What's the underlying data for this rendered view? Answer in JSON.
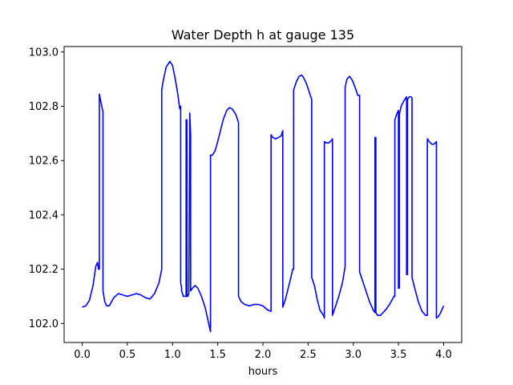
{
  "chart_data": {
    "type": "line",
    "title": "Water Depth h at gauge 135",
    "xlabel": "hours",
    "ylabel": "",
    "xlim": [
      -0.2,
      4.2
    ],
    "ylim": [
      101.93,
      103.02
    ],
    "xticks": [
      0.0,
      0.5,
      1.0,
      1.5,
      2.0,
      2.5,
      3.0,
      3.5,
      4.0
    ],
    "xtick_labels": [
      "0.0",
      "0.5",
      "1.0",
      "1.5",
      "2.0",
      "2.5",
      "3.0",
      "3.5",
      "4.0"
    ],
    "yticks": [
      102.0,
      102.2,
      102.4,
      102.6,
      102.8,
      103.0
    ],
    "ytick_labels": [
      "102.0",
      "102.2",
      "102.4",
      "102.6",
      "102.8",
      "103.0"
    ],
    "grid": false,
    "series": [
      {
        "color": "#0000ff",
        "x": [
          0.0,
          0.04,
          0.08,
          0.12,
          0.15,
          0.17,
          0.18,
          0.19,
          0.19,
          0.21,
          0.23,
          0.23,
          0.25,
          0.27,
          0.3,
          0.35,
          0.4,
          0.45,
          0.5,
          0.55,
          0.6,
          0.65,
          0.7,
          0.75,
          0.8,
          0.85,
          0.88,
          0.88,
          0.9,
          0.93,
          0.97,
          1.0,
          1.03,
          1.06,
          1.08,
          1.09,
          1.09,
          1.1,
          1.1,
          1.12,
          1.14,
          1.15,
          1.15,
          1.16,
          1.16,
          1.17,
          1.18,
          1.19,
          1.19,
          1.2,
          1.2,
          1.22,
          1.25,
          1.28,
          1.32,
          1.36,
          1.4,
          1.42,
          1.42,
          1.44,
          1.47,
          1.5,
          1.53,
          1.56,
          1.6,
          1.63,
          1.66,
          1.7,
          1.73,
          1.73,
          1.76,
          1.8,
          1.85,
          1.9,
          1.95,
          2.0,
          2.05,
          2.09,
          2.09,
          2.11,
          2.14,
          2.17,
          2.2,
          2.22,
          2.22,
          2.25,
          2.28,
          2.31,
          2.33,
          2.34,
          2.34,
          2.37,
          2.4,
          2.43,
          2.45,
          2.48,
          2.51,
          2.54,
          2.54,
          2.57,
          2.6,
          2.63,
          2.67,
          2.68,
          2.68,
          2.7,
          2.73,
          2.76,
          2.77,
          2.77,
          2.8,
          2.84,
          2.88,
          2.91,
          2.91,
          2.93,
          2.96,
          2.99,
          3.02,
          3.05,
          3.07,
          3.07,
          3.1,
          3.14,
          3.18,
          3.22,
          3.24,
          3.24,
          3.25,
          3.25,
          3.27,
          3.3,
          3.33,
          3.37,
          3.41,
          3.45,
          3.46,
          3.46,
          3.48,
          3.5,
          3.5,
          3.51,
          3.51,
          3.53,
          3.56,
          3.58,
          3.59,
          3.59,
          3.6,
          3.6,
          3.62,
          3.64,
          3.65,
          3.65,
          3.68,
          3.72,
          3.76,
          3.8,
          3.82,
          3.82,
          3.84,
          3.87,
          3.89,
          3.91,
          3.92,
          3.92,
          3.94,
          3.96,
          3.98,
          4.0
        ],
        "y": [
          102.06,
          102.065,
          102.085,
          102.14,
          102.21,
          102.225,
          102.2,
          102.2,
          102.845,
          102.81,
          102.78,
          102.12,
          102.08,
          102.065,
          102.065,
          102.095,
          102.11,
          102.105,
          102.1,
          102.105,
          102.11,
          102.105,
          102.095,
          102.09,
          102.11,
          102.15,
          102.2,
          102.86,
          102.9,
          102.945,
          102.965,
          102.95,
          102.9,
          102.84,
          102.79,
          102.8,
          102.15,
          102.13,
          102.12,
          102.1,
          102.1,
          102.1,
          102.75,
          102.75,
          102.1,
          102.1,
          102.11,
          102.7,
          102.775,
          102.7,
          102.12,
          102.13,
          102.14,
          102.13,
          102.1,
          102.06,
          102.0,
          101.97,
          102.62,
          102.62,
          102.635,
          102.67,
          102.71,
          102.75,
          102.785,
          102.795,
          102.79,
          102.77,
          102.74,
          102.1,
          102.08,
          102.07,
          102.065,
          102.07,
          102.07,
          102.065,
          102.05,
          102.045,
          102.695,
          102.685,
          102.68,
          102.685,
          102.69,
          102.71,
          102.06,
          102.09,
          102.13,
          102.17,
          102.2,
          102.2,
          102.86,
          102.89,
          102.91,
          102.915,
          102.905,
          102.885,
          102.855,
          102.825,
          102.17,
          102.14,
          102.09,
          102.05,
          102.03,
          102.02,
          102.67,
          102.665,
          102.665,
          102.675,
          102.68,
          102.03,
          102.06,
          102.1,
          102.15,
          102.21,
          102.87,
          102.9,
          102.91,
          102.895,
          102.87,
          102.84,
          102.84,
          102.19,
          102.16,
          102.12,
          102.08,
          102.05,
          102.04,
          102.685,
          102.685,
          102.04,
          102.03,
          102.03,
          102.04,
          102.055,
          102.075,
          102.1,
          102.1,
          102.75,
          102.77,
          102.785,
          102.13,
          102.13,
          102.77,
          102.8,
          102.82,
          102.83,
          102.835,
          102.18,
          102.18,
          102.825,
          102.835,
          102.835,
          102.83,
          102.17,
          102.13,
          102.08,
          102.045,
          102.03,
          102.03,
          102.68,
          102.67,
          102.66,
          102.66,
          102.665,
          102.67,
          102.02,
          102.025,
          102.035,
          102.05,
          102.065
        ]
      }
    ]
  }
}
